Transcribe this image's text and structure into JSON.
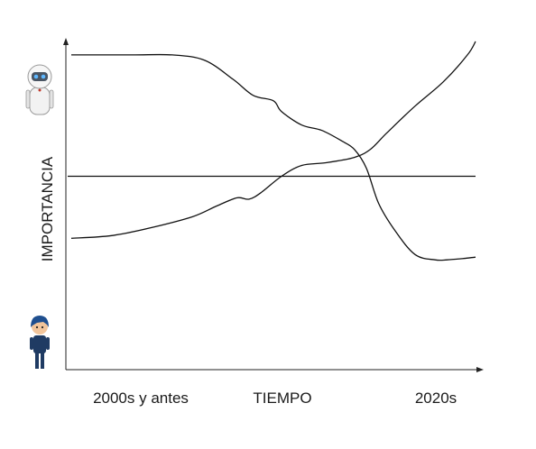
{
  "chart_data": {
    "type": "line",
    "title": "",
    "xlabel": "TIEMPO",
    "ylabel": "IMPORTANCIA",
    "x_tick_labels": [
      "2000s y antes",
      "2020s"
    ],
    "xlim": [
      0,
      1
    ],
    "ylim": [
      0,
      1
    ],
    "grid": false,
    "legend": "none",
    "y_axis_icons": {
      "top": "robot-icon",
      "bottom": "person-icon"
    },
    "reference_line": {
      "y": 0.5
    },
    "series": [
      {
        "x": [
          0,
          0.15,
          0.25,
          0.33,
          0.4,
          0.45,
          0.5,
          0.52,
          0.57,
          0.62,
          0.67,
          0.7,
          0.73,
          0.76,
          0.8,
          0.85,
          0.9,
          0.93,
          0.97,
          1.0
        ],
        "y": [
          0.95,
          0.95,
          0.95,
          0.93,
          0.86,
          0.8,
          0.78,
          0.74,
          0.69,
          0.67,
          0.63,
          0.6,
          0.53,
          0.4,
          0.3,
          0.21,
          0.19,
          0.19,
          0.195,
          0.2
        ]
      },
      {
        "x": [
          0,
          0.1,
          0.2,
          0.3,
          0.36,
          0.41,
          0.44,
          0.47,
          0.52,
          0.57,
          0.63,
          0.7,
          0.74,
          0.78,
          0.85,
          0.92,
          0.98,
          1.0
        ],
        "y": [
          0.27,
          0.28,
          0.31,
          0.35,
          0.39,
          0.42,
          0.415,
          0.44,
          0.5,
          0.54,
          0.55,
          0.57,
          0.6,
          0.66,
          0.76,
          0.85,
          0.95,
          1.0
        ]
      }
    ],
    "colors": {
      "lines": "#111111",
      "axes": "#222222"
    }
  }
}
